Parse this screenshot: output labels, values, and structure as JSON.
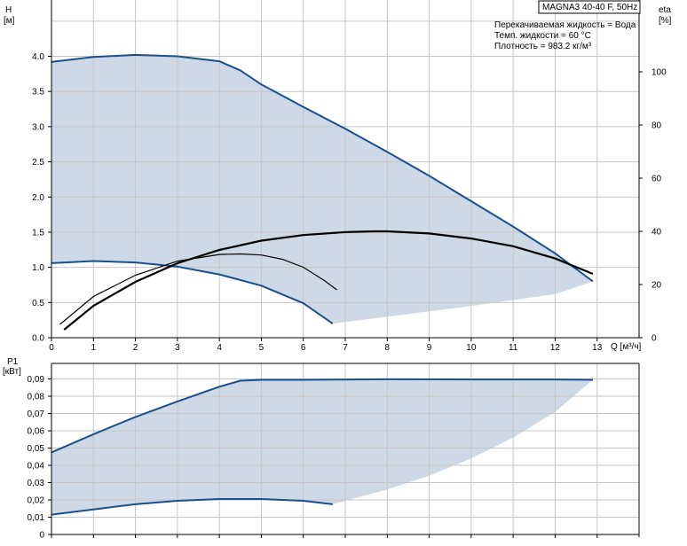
{
  "chart_data": [
    {
      "type": "line",
      "title": "MAGNA3 40-40 F, 50Hz",
      "info_lines": [
        "Перекачиваемая жидкость = Вода",
        "Темп. жидкости = 60 °C",
        "Плотность = 983.2 кг/м³"
      ],
      "ylabel": "H",
      "ylabel_unit": "[м]",
      "y2label": "eta",
      "y2label_unit": "[%]",
      "xlabel": "Q [м³/ч]",
      "xlim": [
        0,
        14
      ],
      "ylim": [
        0,
        4.8
      ],
      "y2lim": [
        0,
        127
      ],
      "grid": true,
      "x_ticks": [
        "0",
        "1",
        "2",
        "3",
        "4",
        "5",
        "6",
        "7",
        "8",
        "9",
        "10",
        "11",
        "12",
        "13"
      ],
      "y_ticks": [
        "0.0",
        "0.5",
        "1.0",
        "1.5",
        "2.0",
        "2.5",
        "3.0",
        "3.5",
        "4.0"
      ],
      "y2_ticks": [
        "0",
        "20",
        "40",
        "60",
        "80",
        "100"
      ],
      "envelope_color": "#cdd9e6",
      "series": [
        {
          "role": "max_curve",
          "color": "#1a4f8a",
          "axis": "H",
          "points": [
            [
              0,
              3.92
            ],
            [
              1,
              3.99
            ],
            [
              2,
              4.02
            ],
            [
              3,
              4.0
            ],
            [
              4,
              3.93
            ],
            [
              4.5,
              3.8
            ],
            [
              5,
              3.6
            ],
            [
              6,
              3.28
            ],
            [
              7,
              2.97
            ],
            [
              8,
              2.64
            ],
            [
              9,
              2.3
            ],
            [
              10,
              1.94
            ],
            [
              11,
              1.58
            ],
            [
              12,
              1.2
            ],
            [
              12.9,
              0.8
            ]
          ]
        },
        {
          "role": "min_curve",
          "color": "#1a4f8a",
          "axis": "H",
          "points": [
            [
              0,
              1.06
            ],
            [
              1,
              1.09
            ],
            [
              2,
              1.07
            ],
            [
              3,
              1.01
            ],
            [
              4,
              0.9
            ],
            [
              5,
              0.74
            ],
            [
              6,
              0.49
            ],
            [
              6.7,
              0.2
            ]
          ]
        },
        {
          "role": "envelope_lower_edge",
          "color": "#ffffff",
          "axis": "H",
          "points": [
            [
              6.7,
              0.2
            ],
            [
              8,
              0.3
            ],
            [
              10,
              0.45
            ],
            [
              12,
              0.62
            ],
            [
              12.9,
              0.8
            ]
          ]
        },
        {
          "role": "eta_max",
          "color": "#000000",
          "axis": "eta",
          "points": [
            [
              0.3,
              3
            ],
            [
              1,
              12
            ],
            [
              2,
              21
            ],
            [
              3,
              28
            ],
            [
              4,
              33
            ],
            [
              5,
              36.5
            ],
            [
              6,
              38.6
            ],
            [
              7,
              39.7
            ],
            [
              7.7,
              40
            ],
            [
              8,
              40
            ],
            [
              9,
              39.2
            ],
            [
              10,
              37.3
            ],
            [
              11,
              34.4
            ],
            [
              12,
              29.8
            ],
            [
              12.9,
              24
            ]
          ]
        },
        {
          "role": "eta_min",
          "color": "#000000",
          "axis": "eta",
          "points": [
            [
              0.2,
              5
            ],
            [
              1,
              15.5
            ],
            [
              2,
              23.5
            ],
            [
              3,
              28.8
            ],
            [
              4,
              31.3
            ],
            [
              4.5,
              31.5
            ],
            [
              5,
              31.1
            ],
            [
              5.5,
              29.5
            ],
            [
              6,
              26.5
            ],
            [
              6.5,
              21.5
            ],
            [
              6.8,
              18
            ]
          ]
        }
      ]
    },
    {
      "type": "line",
      "ylabel": "P1",
      "ylabel_unit": "[кВт]",
      "xlim": [
        0,
        14
      ],
      "ylim": [
        0,
        0.099
      ],
      "grid": true,
      "y_ticks": [
        "0",
        "0,01",
        "0,02",
        "0,03",
        "0,04",
        "0,05",
        "0,06",
        "0,07",
        "0,08",
        "0,09"
      ],
      "envelope_color": "#cdd9e6",
      "series": [
        {
          "role": "max_power",
          "color": "#1a4f8a",
          "points": [
            [
              0,
              0.0475
            ],
            [
              1,
              0.058
            ],
            [
              2,
              0.068
            ],
            [
              3,
              0.077
            ],
            [
              4,
              0.0855
            ],
            [
              4.5,
              0.089
            ],
            [
              5,
              0.0895
            ],
            [
              6,
              0.0895
            ],
            [
              8,
              0.0898
            ],
            [
              10,
              0.0897
            ],
            [
              12,
              0.0897
            ],
            [
              12.9,
              0.0895
            ]
          ]
        },
        {
          "role": "min_power",
          "color": "#1a4f8a",
          "points": [
            [
              0,
              0.0115
            ],
            [
              1,
              0.0145
            ],
            [
              2,
              0.0175
            ],
            [
              3,
              0.0195
            ],
            [
              4,
              0.0205
            ],
            [
              5,
              0.0205
            ],
            [
              6,
              0.0195
            ],
            [
              6.7,
              0.0175
            ]
          ]
        },
        {
          "role": "envelope_lower_edge",
          "color": "#ffffff",
          "points": [
            [
              6.7,
              0.0175
            ],
            [
              8,
              0.026
            ],
            [
              9,
              0.034
            ],
            [
              10,
              0.044
            ],
            [
              11,
              0.056
            ],
            [
              12,
              0.071
            ],
            [
              12.9,
              0.0895
            ]
          ]
        }
      ]
    }
  ]
}
